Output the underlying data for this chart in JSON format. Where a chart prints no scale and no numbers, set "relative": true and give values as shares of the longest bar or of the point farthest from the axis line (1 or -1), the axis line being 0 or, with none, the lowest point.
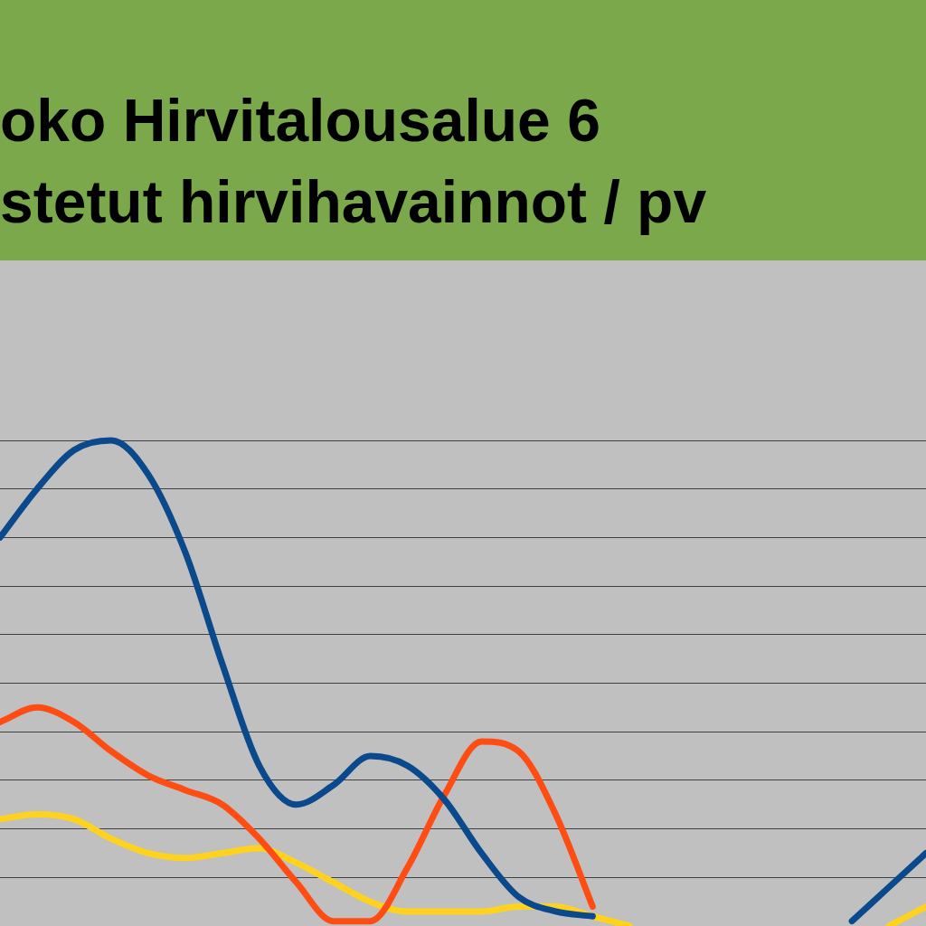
{
  "chart_data": {
    "type": "line",
    "title": "oko Hirvitalousalue 6",
    "subtitle": "stetut hirvihavainnot / pv",
    "categories": [
      null,
      null,
      null,
      null,
      null,
      null,
      null,
      null,
      null,
      null,
      null,
      null,
      null,
      null,
      null,
      null,
      null,
      null,
      null,
      null,
      null,
      null,
      null,
      null,
      null,
      null
    ],
    "relative": true,
    "grid": "y",
    "legend": false,
    "marker": "none",
    "line_style": "solid",
    "series": [
      {
        "color": "#0a4a8c",
        "values": [
          0.8,
          0.9,
          0.98,
          1.0,
          0.93,
          0.77,
          0.54,
          0.33,
          0.25,
          0.29,
          0.35,
          0.33,
          0.26,
          0.15,
          0.06,
          0.03,
          0.02,
          null,
          null,
          null,
          null,
          null,
          null,
          0.01,
          0.08,
          0.15
        ]
      },
      {
        "color": "#ff4c12",
        "values": [
          0.42,
          0.45,
          0.42,
          0.36,
          0.31,
          0.28,
          0.25,
          0.18,
          0.09,
          0.01,
          0.01,
          0.12,
          0.27,
          0.38,
          0.36,
          0.23,
          0.04,
          null,
          null,
          null,
          null,
          null,
          null,
          null,
          null,
          null
        ]
      },
      {
        "color": "#ffd21e",
        "values": [
          0.22,
          0.23,
          0.22,
          0.18,
          0.15,
          0.14,
          0.15,
          0.16,
          0.13,
          0.09,
          0.05,
          0.03,
          0.03,
          0.03,
          0.04,
          0.04,
          0.02,
          0,
          null,
          null,
          null,
          null,
          null,
          null,
          0.0,
          0.04
        ]
      }
    ]
  }
}
